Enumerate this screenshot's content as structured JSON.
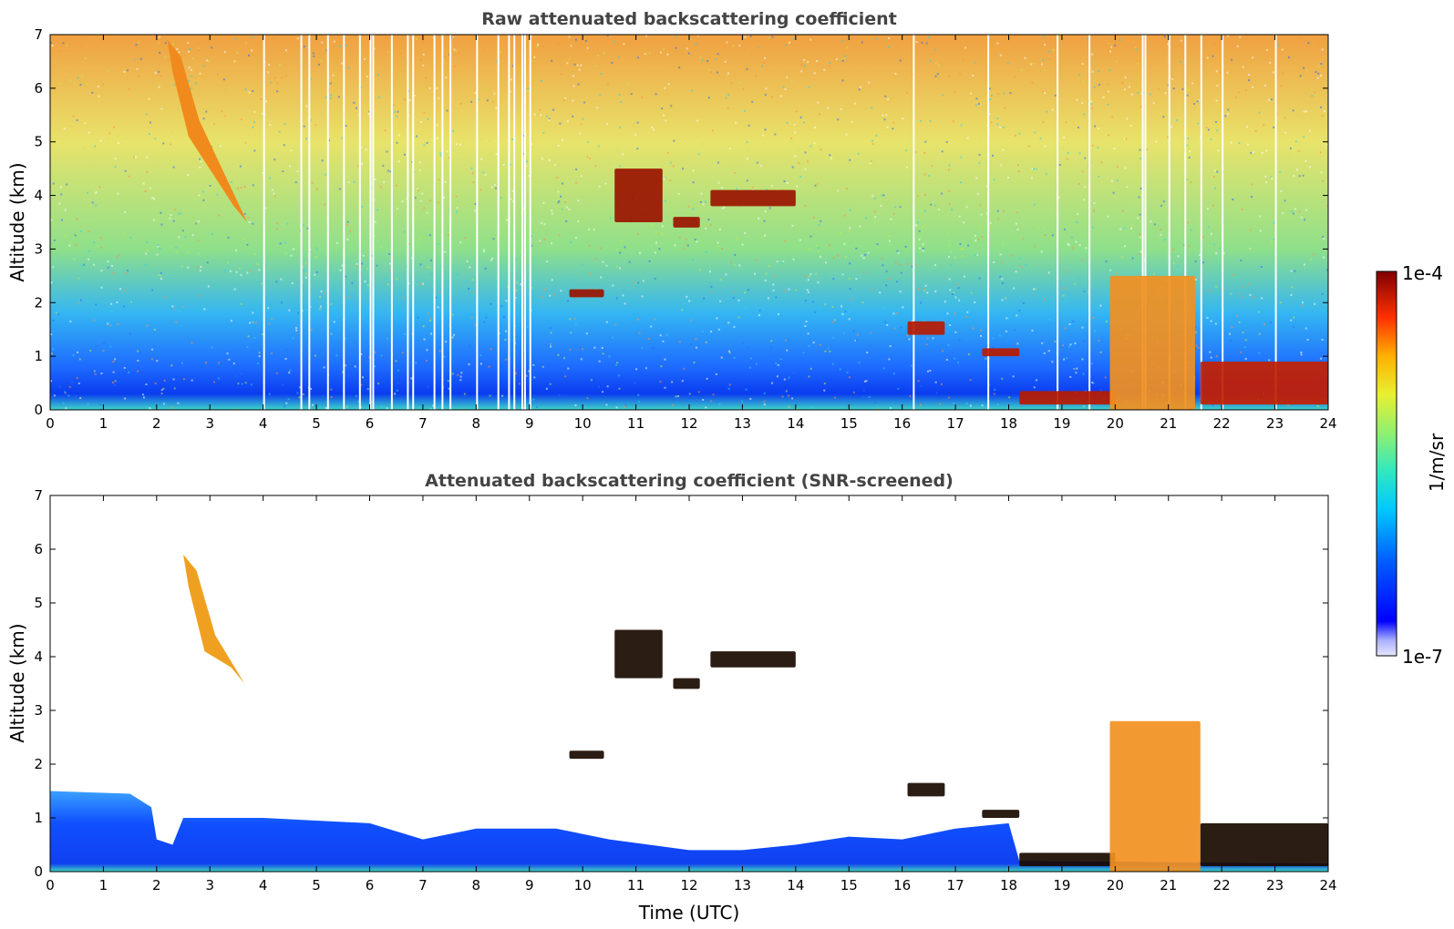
{
  "figure": {
    "colorbar": {
      "max_label": "1e-4",
      "min_label": "1e-7",
      "unit_label": "1/m/sr",
      "colormap": "jet"
    }
  },
  "chart_data": [
    {
      "type": "heatmap",
      "title": "Raw attenuated backscattering coefficient",
      "xlabel": "",
      "ylabel": "Altitude (km)",
      "xlim": [
        0,
        24
      ],
      "ylim": [
        0,
        7
      ],
      "x_ticks": [
        "0",
        "1",
        "2",
        "3",
        "4",
        "5",
        "6",
        "7",
        "8",
        "9",
        "10",
        "11",
        "12",
        "13",
        "14",
        "15",
        "16",
        "17",
        "18",
        "19",
        "20",
        "21",
        "22",
        "23",
        "24"
      ],
      "y_ticks": [
        "0",
        "1",
        "2",
        "3",
        "4",
        "5",
        "6",
        "7"
      ],
      "background_gradient": [
        {
          "alt_km": 0.0,
          "color": "#3fd6c8"
        },
        {
          "alt_km": 0.3,
          "color": "#0a3cf0"
        },
        {
          "alt_km": 0.8,
          "color": "#1e6bff"
        },
        {
          "alt_km": 1.8,
          "color": "#34b6f2"
        },
        {
          "alt_km": 3.0,
          "color": "#8fe08a"
        },
        {
          "alt_km": 5.0,
          "color": "#e8e36a"
        },
        {
          "alt_km": 7.0,
          "color": "#f0a040"
        }
      ],
      "gaps_hours": [
        4.0,
        4.7,
        4.85,
        5.2,
        5.5,
        5.8,
        6.0,
        6.05,
        6.4,
        6.7,
        6.8,
        7.2,
        7.35,
        7.5,
        8.0,
        8.4,
        8.6,
        8.7,
        8.85,
        8.9,
        9.0,
        16.2,
        17.6,
        18.9,
        19.5,
        20.5,
        20.55,
        21.0,
        21.3,
        21.6,
        22.0,
        23.0
      ],
      "features": [
        {
          "name": "cirrus-fall-streak",
          "t": [
            2.2,
            3.7
          ],
          "alt": [
            3.5,
            6.9
          ],
          "color": "#f08a1c"
        },
        {
          "name": "layer-4km-a",
          "t": [
            10.6,
            11.5
          ],
          "alt": [
            3.5,
            4.5
          ],
          "color": "#9a1400"
        },
        {
          "name": "layer-4km-b",
          "t": [
            12.4,
            14.0
          ],
          "alt": [
            3.8,
            4.1
          ],
          "color": "#9a1400"
        },
        {
          "name": "layer-3.5km",
          "t": [
            11.7,
            12.2
          ],
          "alt": [
            3.4,
            3.6
          ],
          "color": "#9a1400"
        },
        {
          "name": "layer-2.2km",
          "t": [
            9.75,
            10.4
          ],
          "alt": [
            2.1,
            2.25
          ],
          "color": "#9a1400"
        },
        {
          "name": "layer-1.5km",
          "t": [
            16.1,
            16.8
          ],
          "alt": [
            1.4,
            1.65
          ],
          "color": "#b81a00"
        },
        {
          "name": "layer-1.1km",
          "t": [
            17.5,
            18.2
          ],
          "alt": [
            1.0,
            1.15
          ],
          "color": "#b81a00"
        },
        {
          "name": "low-cloud-18-20",
          "t": [
            18.2,
            20.0
          ],
          "alt": [
            0.1,
            0.35
          ],
          "color": "#b81a00"
        },
        {
          "name": "precip-20-21.5",
          "t": [
            19.9,
            21.5
          ],
          "alt": [
            0.0,
            2.5
          ],
          "color": "#f29020"
        },
        {
          "name": "low-cloud-21.5-24",
          "t": [
            21.6,
            24.0
          ],
          "alt": [
            0.1,
            0.9
          ],
          "color": "#c42000"
        }
      ]
    },
    {
      "type": "heatmap",
      "title": "Attenuated backscattering coefficient (SNR-screened)",
      "xlabel": "Time (UTC)",
      "ylabel": "Altitude (km)",
      "xlim": [
        0,
        24
      ],
      "ylim": [
        0,
        7
      ],
      "x_ticks": [
        "0",
        "1",
        "2",
        "3",
        "4",
        "5",
        "6",
        "7",
        "8",
        "9",
        "10",
        "11",
        "12",
        "13",
        "14",
        "15",
        "16",
        "17",
        "18",
        "19",
        "20",
        "21",
        "22",
        "23",
        "24"
      ],
      "y_ticks": [
        "0",
        "1",
        "2",
        "3",
        "4",
        "5",
        "6",
        "7"
      ],
      "boundary_layer_top_km": [
        {
          "t": 0.0,
          "alt": 1.5
        },
        {
          "t": 1.5,
          "alt": 1.45
        },
        {
          "t": 1.9,
          "alt": 1.2
        },
        {
          "t": 2.0,
          "alt": 0.6
        },
        {
          "t": 2.3,
          "alt": 0.5
        },
        {
          "t": 2.5,
          "alt": 1.0
        },
        {
          "t": 4.0,
          "alt": 1.0
        },
        {
          "t": 6.0,
          "alt": 0.9
        },
        {
          "t": 7.0,
          "alt": 0.6
        },
        {
          "t": 8.0,
          "alt": 0.8
        },
        {
          "t": 9.5,
          "alt": 0.8
        },
        {
          "t": 10.5,
          "alt": 0.6
        },
        {
          "t": 12.0,
          "alt": 0.4
        },
        {
          "t": 13.0,
          "alt": 0.4
        },
        {
          "t": 14.0,
          "alt": 0.5
        },
        {
          "t": 15.0,
          "alt": 0.65
        },
        {
          "t": 16.0,
          "alt": 0.6
        },
        {
          "t": 17.0,
          "alt": 0.8
        },
        {
          "t": 18.0,
          "alt": 0.9
        },
        {
          "t": 18.2,
          "alt": 0.2
        },
        {
          "t": 24.0,
          "alt": 0.15
        }
      ],
      "features": [
        {
          "name": "cirrus-fall-streak",
          "t": [
            2.5,
            3.65
          ],
          "alt": [
            3.5,
            5.9
          ],
          "color": "#f0a020"
        },
        {
          "name": "layer-4km-a",
          "t": [
            10.6,
            11.5
          ],
          "alt": [
            3.6,
            4.5
          ],
          "color": "#1a0a00"
        },
        {
          "name": "layer-4km-b",
          "t": [
            12.4,
            14.0
          ],
          "alt": [
            3.8,
            4.1
          ],
          "color": "#1a0a00"
        },
        {
          "name": "layer-3.5km",
          "t": [
            11.7,
            12.2
          ],
          "alt": [
            3.4,
            3.6
          ],
          "color": "#1a0a00"
        },
        {
          "name": "layer-2.2km",
          "t": [
            9.75,
            10.4
          ],
          "alt": [
            2.1,
            2.25
          ],
          "color": "#1a0a00"
        },
        {
          "name": "layer-1.5km",
          "t": [
            16.1,
            16.8
          ],
          "alt": [
            1.4,
            1.65
          ],
          "color": "#1a0a00"
        },
        {
          "name": "layer-1.1km",
          "t": [
            17.5,
            18.2
          ],
          "alt": [
            1.0,
            1.15
          ],
          "color": "#1a0a00"
        },
        {
          "name": "low-cloud-18-20",
          "t": [
            18.2,
            20.0
          ],
          "alt": [
            0.1,
            0.35
          ],
          "color": "#1a0a00"
        },
        {
          "name": "precip-20-21.5",
          "t": [
            19.9,
            21.6
          ],
          "alt": [
            0.0,
            2.8
          ],
          "color": "#f29020"
        },
        {
          "name": "low-cloud-21.5-24",
          "t": [
            21.6,
            24.0
          ],
          "alt": [
            0.1,
            0.9
          ],
          "color": "#1a0a00"
        }
      ]
    }
  ]
}
